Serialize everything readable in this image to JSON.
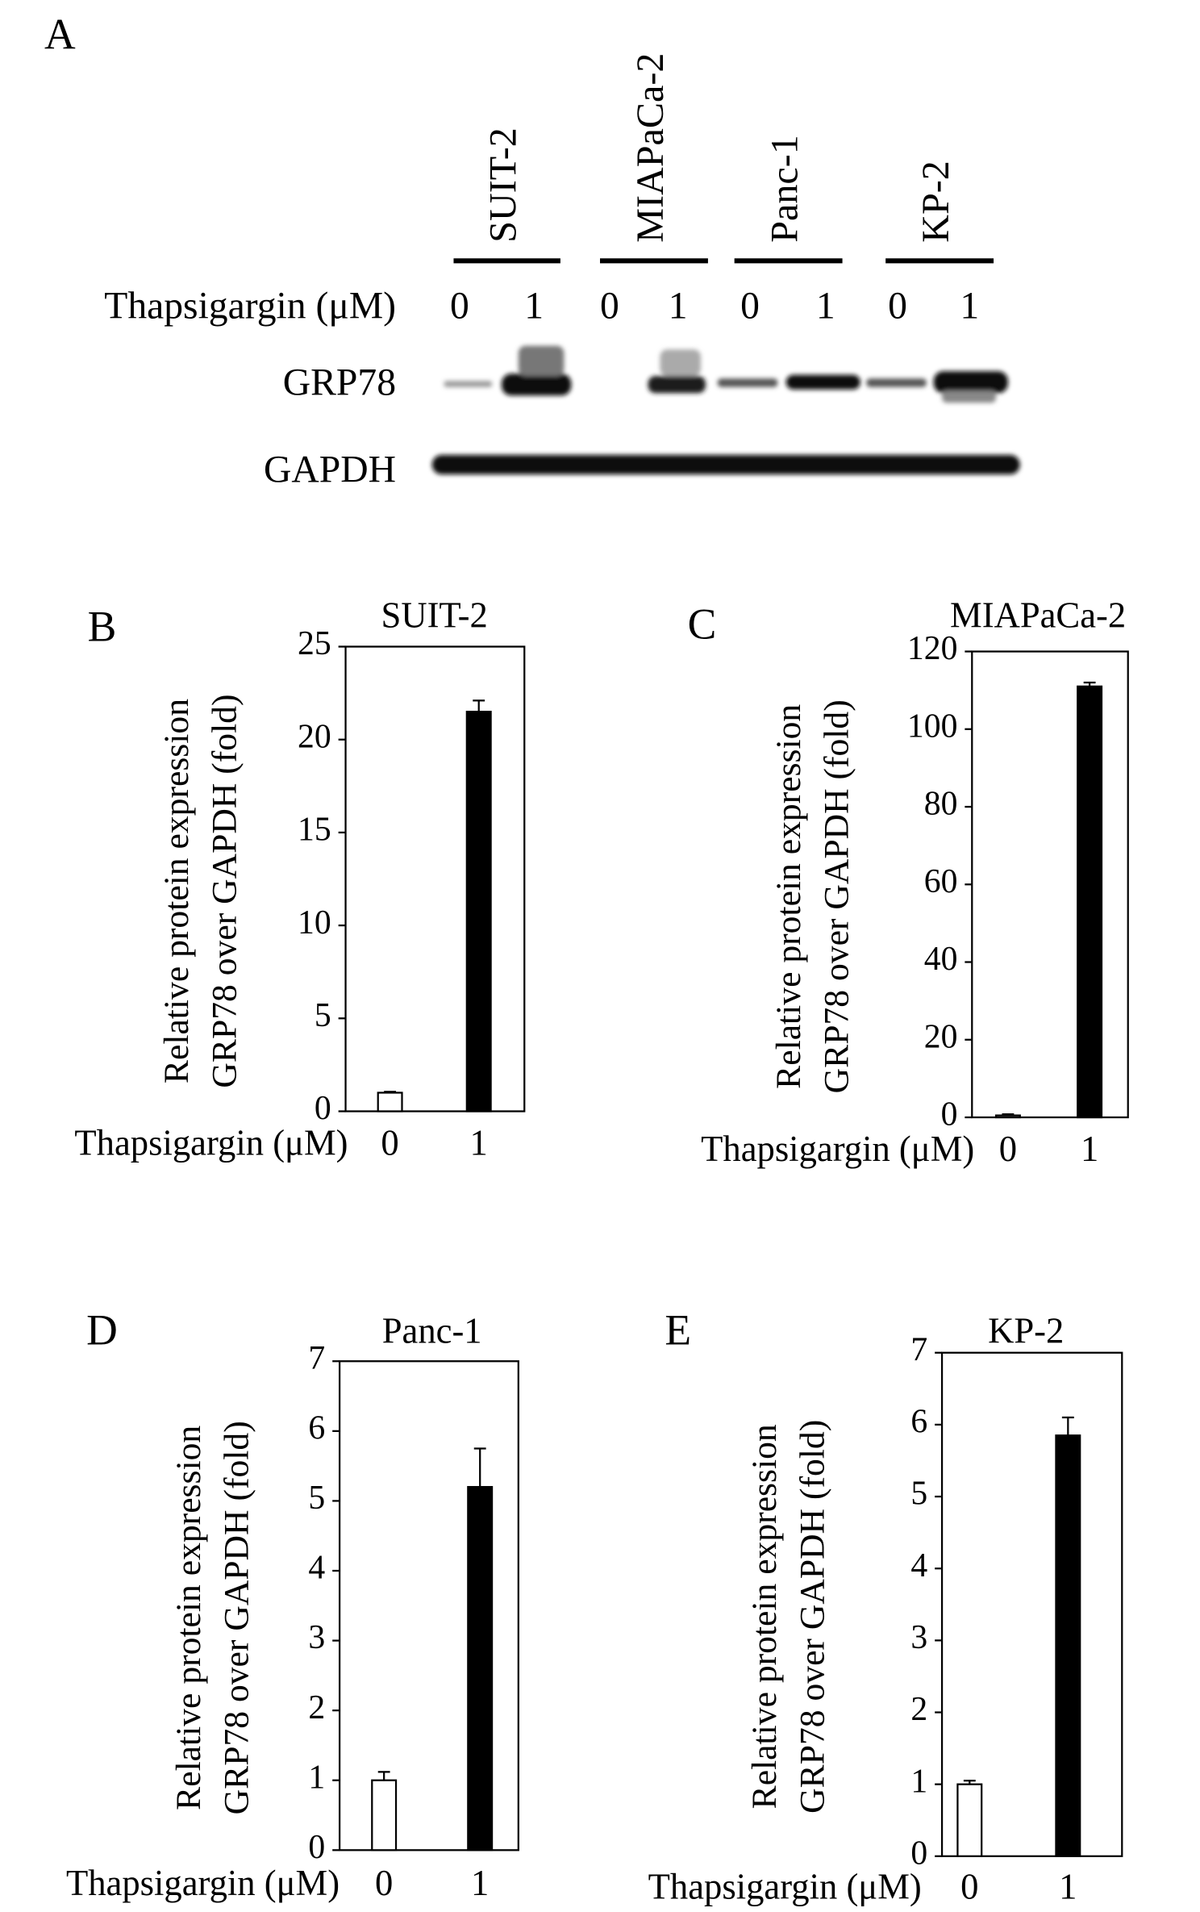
{
  "blot": {
    "panel_label": "A",
    "cell_lines": [
      "SUIT-2",
      "MIAPaCa-2",
      "Panc-1",
      "KP-2"
    ],
    "treatment_label": "Thapsigargin (μM)",
    "doses": [
      "0",
      "1",
      "0",
      "1",
      "0",
      "1",
      "0",
      "1"
    ],
    "proteins": [
      "GRP78",
      "GAPDH"
    ]
  },
  "chart_data": [
    {
      "type": "bar",
      "panel_label": "B",
      "title": "SUIT-2",
      "ylabel": [
        "Relative protein expression",
        "GRP78 over GAPDH (fold)"
      ],
      "xlabel": "Thapsigargin (μM)",
      "categories": [
        "0",
        "1"
      ],
      "values": [
        1.0,
        21.5
      ],
      "errors": [
        0.05,
        0.6
      ],
      "colors": [
        "#ffffff",
        "#000000"
      ],
      "ylim": [
        0,
        25
      ],
      "yticks": [
        0,
        5,
        10,
        15,
        20,
        25
      ]
    },
    {
      "type": "bar",
      "panel_label": "C",
      "title": "MIAPaCa-2",
      "ylabel": [
        "Relative protein expression",
        "GRP78 over GAPDH (fold)"
      ],
      "xlabel": "Thapsigargin (μM)",
      "categories": [
        "0",
        "1"
      ],
      "values": [
        0.5,
        111
      ],
      "errors": [
        0.3,
        1
      ],
      "colors": [
        "#ffffff",
        "#000000"
      ],
      "ylim": [
        0,
        120
      ],
      "yticks": [
        0,
        20,
        40,
        60,
        80,
        100,
        120
      ]
    },
    {
      "type": "bar",
      "panel_label": "D",
      "title": "Panc-1",
      "ylabel": [
        "Relative protein expression",
        "GRP78 over GAPDH (fold)"
      ],
      "xlabel": "Thapsigargin (μM)",
      "categories": [
        "0",
        "1"
      ],
      "values": [
        1.0,
        5.2
      ],
      "errors": [
        0.12,
        0.55
      ],
      "colors": [
        "#ffffff",
        "#000000"
      ],
      "ylim": [
        0,
        7
      ],
      "yticks": [
        0,
        1,
        2,
        3,
        4,
        5,
        6,
        7
      ]
    },
    {
      "type": "bar",
      "panel_label": "E",
      "title": "KP-2",
      "ylabel": [
        "Relative protein expression",
        "GRP78 over GAPDH (fold)"
      ],
      "xlabel": "Thapsigargin (μM)",
      "categories": [
        "0",
        "1"
      ],
      "values": [
        1.0,
        5.85
      ],
      "errors": [
        0.05,
        0.25
      ],
      "colors": [
        "#ffffff",
        "#000000"
      ],
      "ylim": [
        0,
        7
      ],
      "yticks": [
        0,
        1,
        2,
        3,
        4,
        5,
        6,
        7
      ]
    }
  ]
}
